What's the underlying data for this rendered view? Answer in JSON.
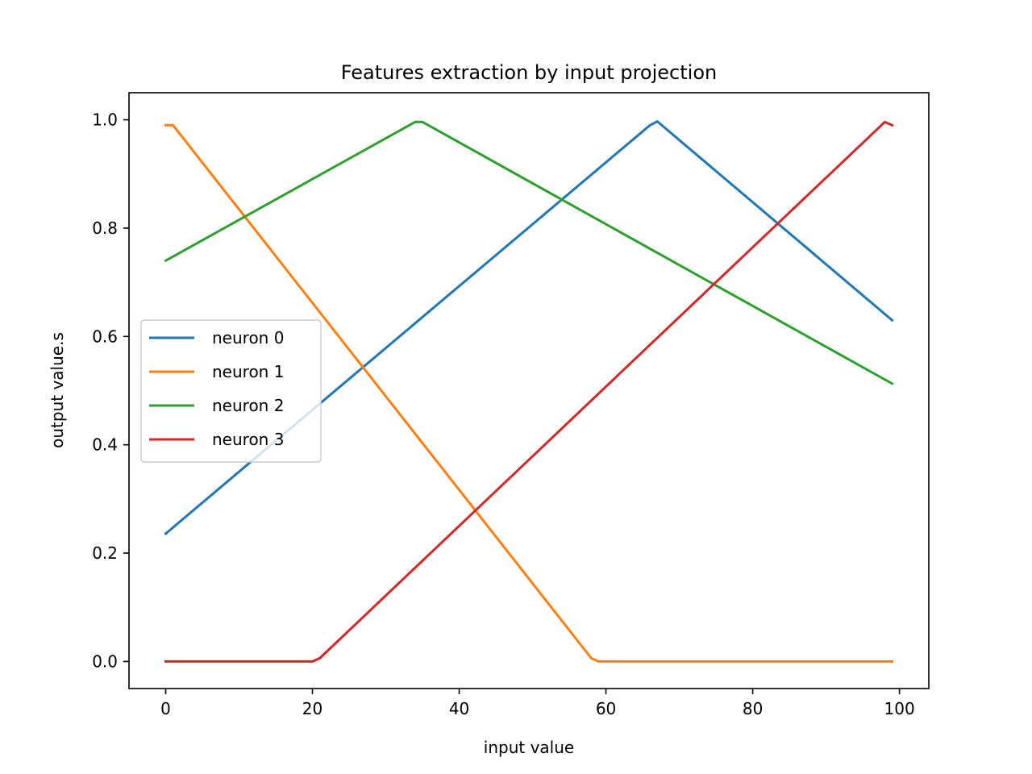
{
  "chart_data": {
    "type": "line",
    "title": "Features extraction by input projection",
    "xlabel": "input value",
    "ylabel": "output value.s",
    "xlim": [
      -5,
      104
    ],
    "ylim": [
      -0.05,
      1.05
    ],
    "xticks": [
      0,
      20,
      40,
      60,
      80,
      100
    ],
    "xtick_labels": [
      "0",
      "20",
      "40",
      "60",
      "80",
      "100"
    ],
    "yticks": [
      0.0,
      0.2,
      0.4,
      0.6,
      0.8,
      1.0
    ],
    "ytick_labels": [
      "0.0",
      "0.2",
      "0.4",
      "0.6",
      "0.8",
      "1.0"
    ],
    "grid": false,
    "legend_position": "center-left",
    "series": [
      {
        "name": "neuron 0",
        "color": "#1f77b4",
        "x": [
          0,
          66,
          67,
          99
        ],
        "y": [
          0.236,
          0.99,
          0.997,
          0.63
        ]
      },
      {
        "name": "neuron 1",
        "color": "#ff7f0e",
        "x": [
          0,
          1,
          58,
          59,
          99
        ],
        "y": [
          0.99,
          0.99,
          0.006,
          0.0,
          0.0
        ]
      },
      {
        "name": "neuron 2",
        "color": "#2ca02c",
        "x": [
          0,
          34,
          35,
          99
        ],
        "y": [
          0.74,
          0.996,
          0.996,
          0.513
        ]
      },
      {
        "name": "neuron 3",
        "color": "#d62728",
        "x": [
          0,
          20,
          21,
          98,
          99
        ],
        "y": [
          0.0,
          0.0,
          0.006,
          0.996,
          0.99
        ]
      }
    ]
  }
}
